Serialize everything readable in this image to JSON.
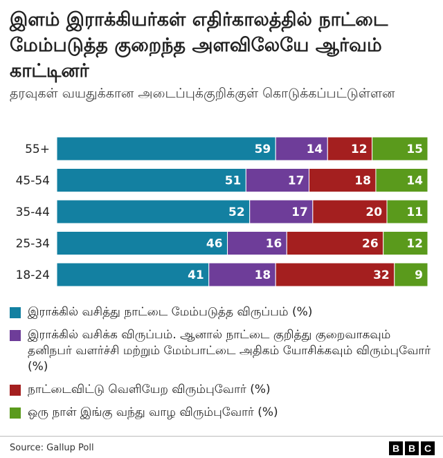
{
  "header": {
    "title": "இளம் இராக்கியர்கள் எதிர்காலத்தில் நாட்டை மேம்படுத்த குறைந்த அளவிலேயே ஆர்வம் காட்டினர்",
    "subtitle": "தரவுகள் வயதுக்கான அடைப்புக்குறிக்குள் கொடுக்கப்பட்டுள்ளன"
  },
  "chart_data": {
    "type": "bar",
    "stacked": true,
    "orientation": "horizontal",
    "categories": [
      "55+",
      "45-54",
      "35-44",
      "25-34",
      "18-24"
    ],
    "series": [
      {
        "name": "இராக்கில் வசித்து நாட்டை மேம்படுத்த விருப்பம் (%)",
        "color": "#1380a1",
        "values": [
          59,
          51,
          52,
          46,
          41
        ]
      },
      {
        "name": "இராக்கில் வசிக்க விருப்பம். ஆனால் நாட்டை குறித்து குறைவாகவும் தனிநபர் வளர்ச்சி மற்றும் மேம்பாட்டை அதிகம் யோசிக்கவும் விரும்புவோர் (%)",
        "color": "#6e3d99",
        "values": [
          14,
          17,
          17,
          16,
          18
        ]
      },
      {
        "name": "நாட்டைவிட்டு வெளியேற விரும்புவோர் (%)",
        "color": "#a41f1f",
        "values": [
          12,
          18,
          20,
          26,
          32
        ]
      },
      {
        "name": "ஒரு நாள் இங்கு வந்து வாழ விரும்புவோர் (%)",
        "color": "#5a9a1c",
        "values": [
          15,
          14,
          11,
          12,
          9
        ]
      }
    ],
    "legend_position": "bottom",
    "data_labels": true
  },
  "footer": {
    "source": "Source: Gallup Poll",
    "logo": [
      "B",
      "B",
      "C"
    ]
  }
}
